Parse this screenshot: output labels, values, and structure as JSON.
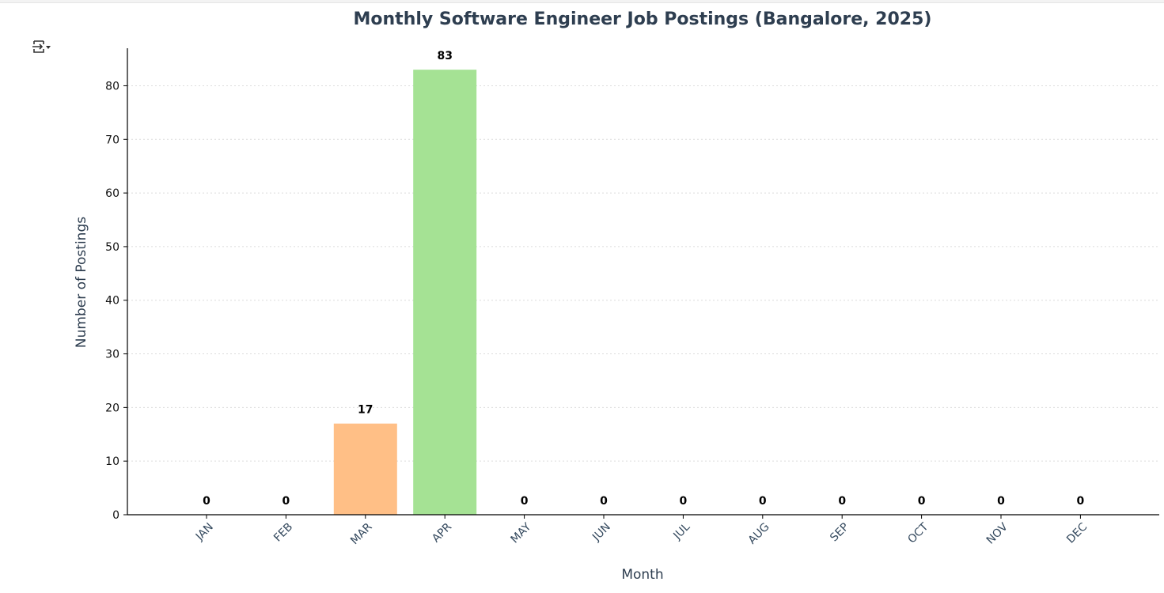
{
  "chart_data": {
    "type": "bar",
    "title": "Monthly Software Engineer Job Postings (Bangalore, 2025)",
    "xlabel": "Month",
    "ylabel": "Number of Postings",
    "categories": [
      "JAN",
      "FEB",
      "MAR",
      "APR",
      "MAY",
      "JUN",
      "JUL",
      "AUG",
      "SEP",
      "OCT",
      "NOV",
      "DEC"
    ],
    "values": [
      0,
      0,
      17,
      83,
      0,
      0,
      0,
      0,
      0,
      0,
      0,
      0
    ],
    "data_labels": [
      "0",
      "0",
      "17",
      "83",
      "0",
      "0",
      "0",
      "0",
      "0",
      "0",
      "0",
      "0"
    ],
    "bar_colors": [
      "#aec7e8",
      "#aec7e8",
      "#ffbf86",
      "#a5e294",
      "#aec7e8",
      "#aec7e8",
      "#aec7e8",
      "#aec7e8",
      "#aec7e8",
      "#aec7e8",
      "#aec7e8",
      "#aec7e8"
    ],
    "yticks": [
      0,
      10,
      20,
      30,
      40,
      50,
      60,
      70,
      80
    ],
    "ylim": [
      0,
      87
    ],
    "grid": "y-dotted",
    "legend": "none"
  },
  "toolbar": {
    "icon": "output-actions-icon"
  }
}
